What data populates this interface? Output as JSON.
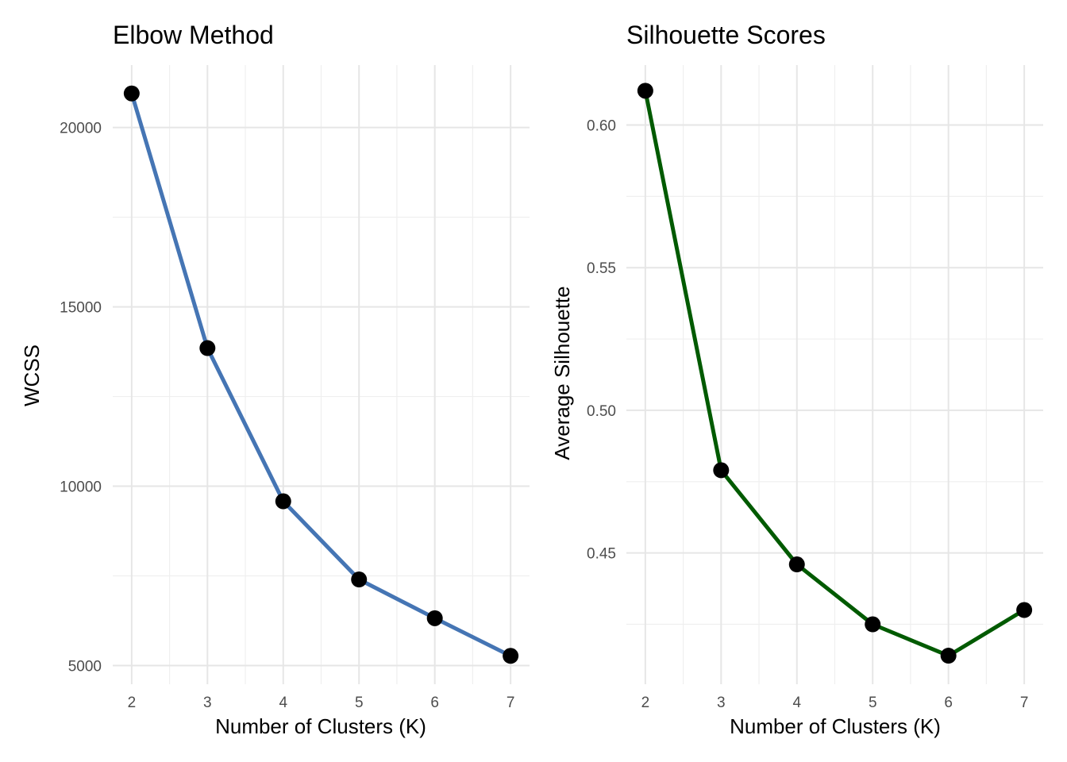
{
  "chart_data": [
    {
      "type": "line",
      "title": "Elbow Method",
      "xlabel": "Number of Clusters (K)",
      "ylabel": "WCSS",
      "x": [
        2,
        3,
        4,
        5,
        6,
        7
      ],
      "series": [
        {
          "values": [
            20950,
            13850,
            9580,
            7400,
            6320,
            5270
          ],
          "color": "#4575b4"
        }
      ],
      "point_color": "#000000",
      "xlim": [
        1.75,
        7.25
      ],
      "ylim": [
        4480,
        21740
      ],
      "xticks": [
        2,
        3,
        4,
        5,
        6,
        7
      ],
      "yticks": [
        5000,
        10000,
        15000,
        20000
      ],
      "yminor": [
        7500,
        12500,
        17500
      ],
      "grid": true,
      "legend": "none"
    },
    {
      "type": "line",
      "title": "Silhouette Scores",
      "xlabel": "Number of Clusters (K)",
      "ylabel": "Average Silhouette",
      "x": [
        2,
        3,
        4,
        5,
        6,
        7
      ],
      "series": [
        {
          "values": [
            0.612,
            0.479,
            0.446,
            0.425,
            0.414,
            0.43
          ],
          "color": "#005a00"
        }
      ],
      "point_color": "#000000",
      "xlim": [
        1.75,
        7.25
      ],
      "ylim": [
        0.404,
        0.621
      ],
      "xticks": [
        2,
        3,
        4,
        5,
        6,
        7
      ],
      "yticks": [
        0.45,
        0.5,
        0.55,
        0.6
      ],
      "ytick_labels": [
        "0.45",
        "0.50",
        "0.55",
        "0.60"
      ],
      "yminor": [
        0.425,
        0.475,
        0.525,
        0.575
      ],
      "grid": true,
      "legend": "none"
    }
  ]
}
